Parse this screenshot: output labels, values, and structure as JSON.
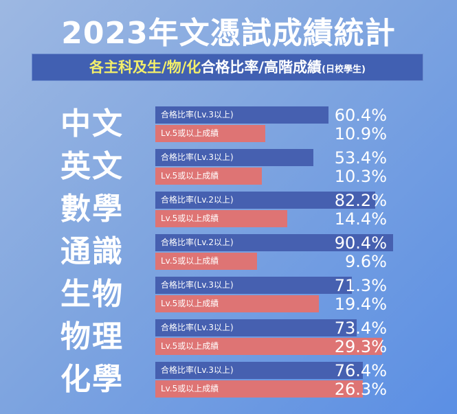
{
  "title": "2023年文憑試成績統計",
  "subtitle": {
    "yellow": "各主科及生/物/化",
    "white": "合格比率/高階成績",
    "small": "(日校學生)"
  },
  "colors": {
    "pass": "#4660b0",
    "high": "#de7474",
    "highlight": "#f3ef6a"
  },
  "chart_data": {
    "type": "bar",
    "title": "2023年文憑試成績統計",
    "categories": [
      "中文",
      "英文",
      "數學",
      "通識",
      "生物",
      "物理",
      "化學"
    ],
    "series": [
      {
        "name": "合格比率",
        "labels": [
          "合格比率(Lv.3以上)",
          "合格比率(Lv.3以上)",
          "合格比率(Lv.2以上)",
          "合格比率(Lv.2以上)",
          "合格比率(Lv.3以上)",
          "合格比率(Lv.3以上)",
          "合格比率(Lv.3以上)"
        ],
        "values": [
          60.4,
          53.4,
          82.2,
          90.4,
          71.3,
          73.4,
          76.4
        ],
        "display": [
          "60.4%",
          "53.4%",
          "82.2%",
          "90.4%",
          "71.3%",
          "73.4%",
          "76.4%"
        ]
      },
      {
        "name": "Lv.5或以上成績",
        "labels": [
          "Lv.5或以上成績",
          "Lv.5或以上成績",
          "Lv.5或以上成績",
          "Lv.5或以上成績",
          "Lv.5或以上成績",
          "Lv.5或以上成績",
          "Lv.5或以上成績"
        ],
        "values": [
          10.9,
          10.3,
          14.4,
          9.6,
          19.4,
          29.3,
          26.3
        ],
        "display": [
          "10.9%",
          "10.3%",
          "14.4%",
          "9.6%",
          "19.4%",
          "29.3%",
          "26.3%"
        ]
      }
    ],
    "unit": "%"
  }
}
